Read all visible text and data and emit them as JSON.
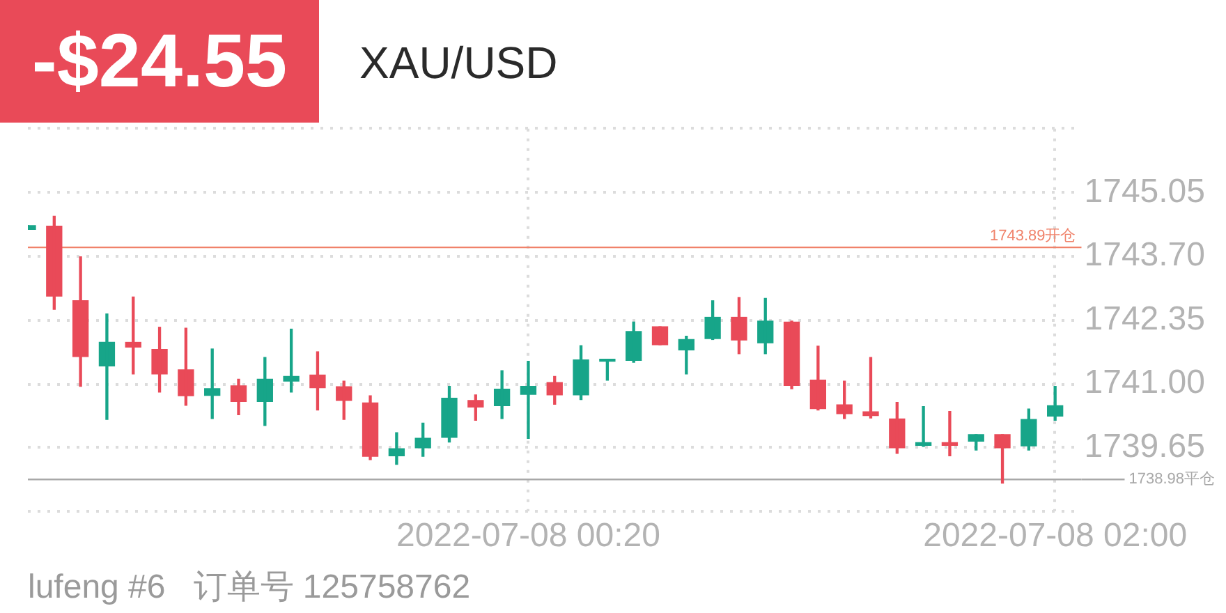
{
  "chart_data": {
    "type": "candlestick",
    "title": "XAU/USD",
    "annotations": [
      "-$24.55",
      "lufeng #6   订单号 125758762"
    ],
    "x": [
      "2022-07-07T22:45",
      "2022-07-07T22:50",
      "2022-07-07T22:55",
      "2022-07-07T23:00",
      "2022-07-07T23:05",
      "2022-07-07T23:10",
      "2022-07-07T23:15",
      "2022-07-07T23:20",
      "2022-07-07T23:25",
      "2022-07-07T23:30",
      "2022-07-07T23:35",
      "2022-07-07T23:40",
      "2022-07-07T23:45",
      "2022-07-07T23:50",
      "2022-07-07T23:55",
      "2022-07-08T00:00",
      "2022-07-08T00:05",
      "2022-07-08T00:10",
      "2022-07-08T00:15",
      "2022-07-08T00:20",
      "2022-07-08T00:25",
      "2022-07-08T00:30",
      "2022-07-08T00:35",
      "2022-07-08T00:40",
      "2022-07-08T00:45",
      "2022-07-08T00:50",
      "2022-07-08T00:55",
      "2022-07-08T01:00",
      "2022-07-08T01:05",
      "2022-07-08T01:10",
      "2022-07-08T01:15",
      "2022-07-08T01:20",
      "2022-07-08T01:25",
      "2022-07-08T01:30",
      "2022-07-08T01:35",
      "2022-07-08T01:40",
      "2022-07-08T01:45",
      "2022-07-08T01:50",
      "2022-07-08T01:55",
      "2022-07-08T02:00"
    ],
    "ohlc": [
      [
        1744.27,
        1744.35,
        1744.27,
        1744.35
      ],
      [
        1744.34,
        1744.55,
        1742.58,
        1742.86
      ],
      [
        1742.76,
        1743.69,
        1740.95,
        1741.58
      ],
      [
        1741.38,
        1742.48,
        1740.25,
        1741.88
      ],
      [
        1741.88,
        1742.84,
        1741.21,
        1741.78
      ],
      [
        1741.73,
        1742.2,
        1740.83,
        1741.21
      ],
      [
        1741.3,
        1742.18,
        1740.55,
        1740.75
      ],
      [
        1740.76,
        1741.74,
        1740.27,
        1740.9
      ],
      [
        1740.96,
        1741.1,
        1740.35,
        1740.63
      ],
      [
        1740.63,
        1741.56,
        1740.12,
        1741.1
      ],
      [
        1741.06,
        1742.16,
        1740.83,
        1741.16
      ],
      [
        1741.19,
        1741.68,
        1740.45,
        1740.92
      ],
      [
        1740.94,
        1741.06,
        1740.25,
        1740.65
      ],
      [
        1740.6,
        1740.75,
        1739.4,
        1739.47
      ],
      [
        1739.48,
        1739.97,
        1739.3,
        1739.63
      ],
      [
        1739.65,
        1740.17,
        1739.47,
        1739.85
      ],
      [
        1739.87,
        1740.95,
        1739.77,
        1740.7
      ],
      [
        1740.65,
        1740.77,
        1740.23,
        1740.51
      ],
      [
        1740.54,
        1741.28,
        1740.27,
        1740.89
      ],
      [
        1740.78,
        1741.48,
        1739.85,
        1740.95
      ],
      [
        1741.03,
        1741.16,
        1740.57,
        1740.77
      ],
      [
        1740.77,
        1741.81,
        1740.67,
        1741.51
      ],
      [
        1741.48,
        1741.52,
        1741.08,
        1741.52
      ],
      [
        1741.5,
        1742.31,
        1741.46,
        1742.11
      ],
      [
        1742.21,
        1742.21,
        1741.83,
        1741.83
      ],
      [
        1741.72,
        1742.01,
        1741.21,
        1741.94
      ],
      [
        1741.96,
        1742.76,
        1741.94,
        1742.41
      ],
      [
        1742.41,
        1742.83,
        1741.64,
        1741.93
      ],
      [
        1741.87,
        1742.81,
        1741.64,
        1742.33
      ],
      [
        1742.31,
        1742.33,
        1740.9,
        1740.97
      ],
      [
        1741.08,
        1741.8,
        1740.45,
        1740.48
      ],
      [
        1740.56,
        1741.06,
        1740.27,
        1740.37
      ],
      [
        1740.41,
        1741.56,
        1740.28,
        1740.33
      ],
      [
        1740.26,
        1740.61,
        1739.53,
        1739.65
      ],
      [
        1739.7,
        1740.52,
        1739.68,
        1739.76
      ],
      [
        1739.76,
        1740.42,
        1739.48,
        1739.7
      ],
      [
        1739.79,
        1739.93,
        1739.6,
        1739.93
      ],
      [
        1739.93,
        1739.93,
        1738.9,
        1739.65
      ],
      [
        1739.69,
        1740.47,
        1739.6,
        1740.25
      ],
      [
        1740.32,
        1740.95,
        1740.23,
        1740.54
      ]
    ],
    "colors": [
      "#17a589",
      "#e94a58",
      "#e94a58",
      "#17a589",
      "#e94a58",
      "#e94a58",
      "#e94a58",
      "#17a589",
      "#e94a58",
      "#17a589",
      "#17a589",
      "#e94a58",
      "#e94a58",
      "#e94a58",
      "#17a589",
      "#17a589",
      "#17a589",
      "#e94a58",
      "#17a589",
      "#17a589",
      "#e94a58",
      "#17a589",
      "#17a589",
      "#17a589",
      "#e94a58",
      "#17a589",
      "#17a589",
      "#e94a58",
      "#17a589",
      "#e94a58",
      "#e94a58",
      "#e94a58",
      "#e94a58",
      "#e94a58",
      "#17a589",
      "#e94a58",
      "#17a589",
      "#e94a58",
      "#17a589",
      "#17a589"
    ],
    "xlim": [
      "2022-07-07T22:45",
      "2022-07-08T02:05"
    ],
    "xticks": [
      {
        "value": "2022-07-08T00:20",
        "label": "2022-07-08 00:20"
      },
      {
        "value": "2022-07-08T02:00",
        "label": "2022-07-08 02:00"
      }
    ],
    "ylim": [
      1738.3,
      1746.4
    ],
    "yticks": [
      {
        "value": 1738.3,
        "label": null
      },
      1739.65,
      {
        "value": 1741,
        "label": "1741.00"
      },
      1742.35,
      {
        "value": 1743.7,
        "label": "1743.70"
      },
      1745.05,
      {
        "value": 1746.4,
        "label": null
      }
    ],
    "ref_lines": [
      {
        "axis": "y",
        "value": 1743.89,
        "label": "1743.89开仓",
        "color": "#f0826a"
      },
      {
        "axis": "y",
        "value": 1738.98,
        "label": "1738.98平仓",
        "color": "#a8a8a8"
      }
    ],
    "grid": true
  }
}
